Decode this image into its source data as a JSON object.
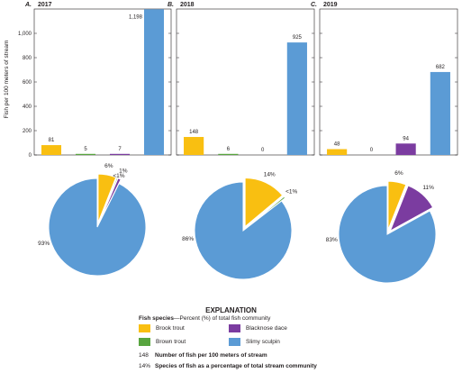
{
  "chart_data": {
    "type": "bar",
    "ylabel": "Fish per 100 meters of stream",
    "ylim": [
      0,
      1200
    ],
    "yticks": [
      "0",
      "200",
      "400",
      "600",
      "800",
      "1,000"
    ],
    "categories": [
      "Brook trout",
      "Brown trout",
      "Blacknose dace",
      "Slimy sculpin"
    ],
    "colors": {
      "Brook trout": "#f9bf11",
      "Brown trout": "#58a53f",
      "Blacknose dace": "#7b3ca0",
      "Slimy sculpin": "#5b9bd5"
    },
    "panels": [
      {
        "letter": "A.",
        "year": "2017",
        "values": [
          81,
          5,
          7,
          1198
        ],
        "value_labels": [
          "81",
          "5",
          "7",
          "1,198"
        ],
        "pie": {
          "values": [
            6,
            0.4,
            1,
            93
          ],
          "labels": [
            "6%",
            "",
            "1%",
            "93%"
          ],
          "exploded": [
            "Brook trout",
            "Brown trout",
            "Blacknose dace"
          ]
        },
        "pie_extra_labels": [
          "<1%"
        ]
      },
      {
        "letter": "B.",
        "year": "2018",
        "values": [
          148,
          6,
          0,
          925
        ],
        "value_labels": [
          "148",
          "6",
          "0",
          "925"
        ],
        "pie": {
          "values": [
            14,
            0.6,
            0,
            86
          ],
          "labels": [
            "14%",
            "<1%",
            "",
            "86%"
          ],
          "exploded": [
            "Brook trout",
            "Brown trout"
          ]
        }
      },
      {
        "letter": "C.",
        "year": "2019",
        "values": [
          48,
          0,
          94,
          682
        ],
        "value_labels": [
          "48",
          "0",
          "94",
          "682"
        ],
        "pie": {
          "values": [
            6,
            0,
            11,
            83
          ],
          "labels": [
            "6%",
            "",
            "11%",
            "83%"
          ],
          "exploded": [
            "Brook trout",
            "Blacknose dace"
          ]
        }
      }
    ]
  },
  "legend": {
    "title": "EXPLANATION",
    "subtitle_bold": "Fish species",
    "subtitle_rest": "—Percent (%) of total fish community",
    "items": [
      "Brook trout",
      "Blacknose dace",
      "Brown trout",
      "Slimy sculpin"
    ],
    "note1_key": "148",
    "note1_text": "Number of fish per 100 meters of stream",
    "note2_key": "14%",
    "note2_text": "Species of fish as a percentage of total stream community"
  }
}
